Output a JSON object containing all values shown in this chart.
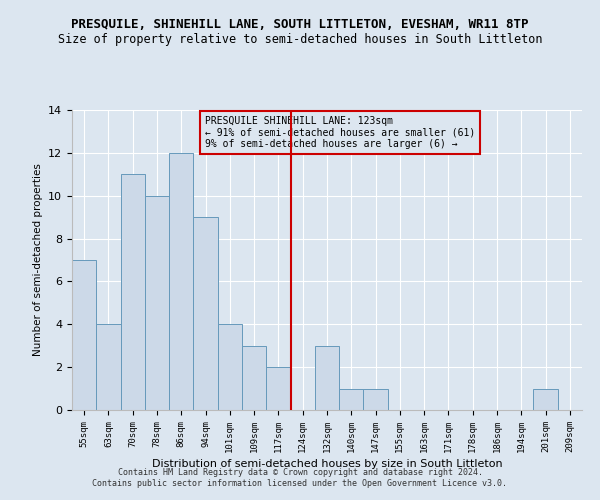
{
  "title": "PRESQUILE, SHINEHILL LANE, SOUTH LITTLETON, EVESHAM, WR11 8TP",
  "subtitle": "Size of property relative to semi-detached houses in South Littleton",
  "xlabel": "Distribution of semi-detached houses by size in South Littleton",
  "ylabel": "Number of semi-detached properties",
  "categories": [
    "55sqm",
    "63sqm",
    "70sqm",
    "78sqm",
    "86sqm",
    "94sqm",
    "101sqm",
    "109sqm",
    "117sqm",
    "124sqm",
    "132sqm",
    "140sqm",
    "147sqm",
    "155sqm",
    "163sqm",
    "171sqm",
    "178sqm",
    "186sqm",
    "194sqm",
    "201sqm",
    "209sqm"
  ],
  "values": [
    7,
    4,
    11,
    10,
    12,
    9,
    4,
    3,
    2,
    0,
    3,
    1,
    1,
    0,
    0,
    0,
    0,
    0,
    0,
    1,
    0
  ],
  "bar_color": "#ccd9e8",
  "bar_edge_color": "#6699bb",
  "vline_color": "#cc0000",
  "annotation_title": "PRESQUILE SHINEHILL LANE: 123sqm",
  "annotation_line1": "← 91% of semi-detached houses are smaller (61)",
  "annotation_line2": "9% of semi-detached houses are larger (6) →",
  "annotation_box_color": "#cc0000",
  "ylim": [
    0,
    14
  ],
  "yticks": [
    0,
    2,
    4,
    6,
    8,
    10,
    12,
    14
  ],
  "footer_line1": "Contains HM Land Registry data © Crown copyright and database right 2024.",
  "footer_line2": "Contains public sector information licensed under the Open Government Licence v3.0.",
  "background_color": "#dce6f0",
  "grid_color": "#ffffff",
  "title_fontsize": 9,
  "subtitle_fontsize": 8.5
}
